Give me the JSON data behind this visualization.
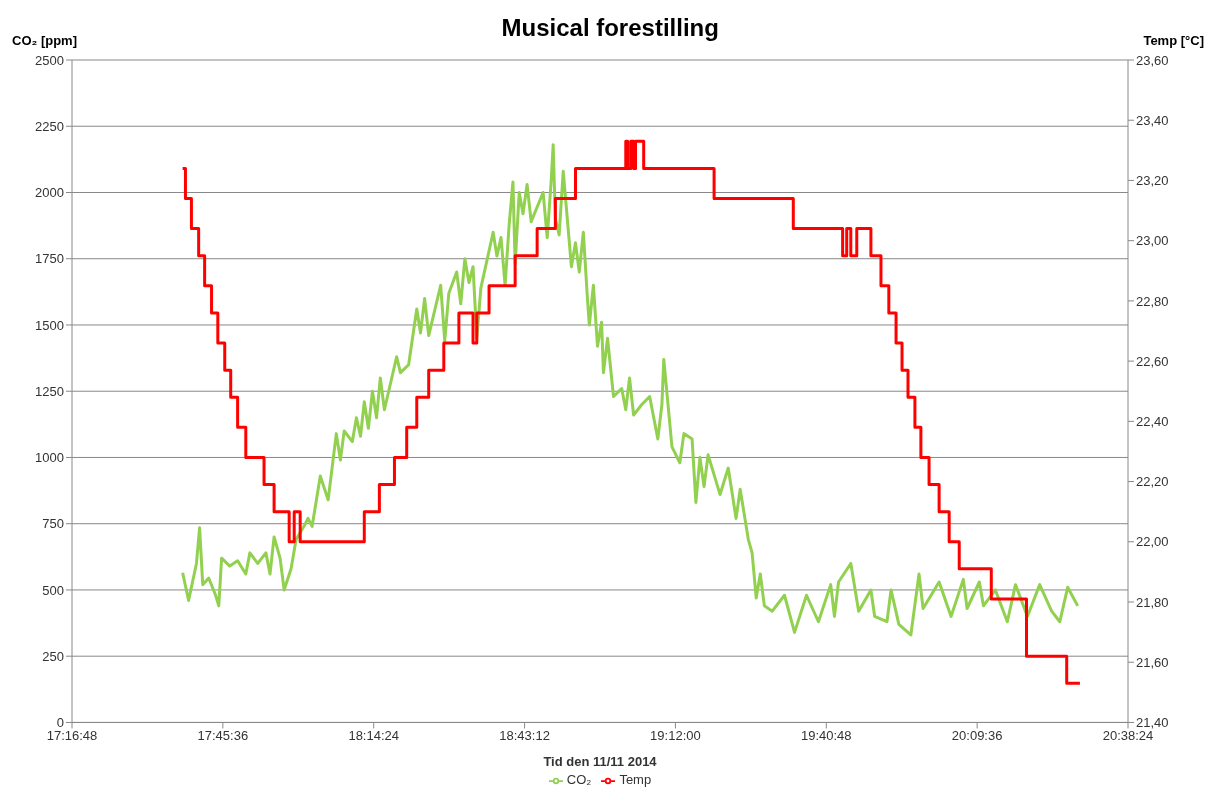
{
  "chart_data": {
    "type": "line",
    "title": "Musical forestilling",
    "xlabel": "Tid den 11/11 2014",
    "ylabel": "CO₂ [ppm]",
    "y2label": "Temp [°C]",
    "xlim": [
      17.28,
      20.64
    ],
    "xticks": [
      {
        "value": 17.28,
        "label": "17:16:48"
      },
      {
        "value": 17.76,
        "label": "17:45:36"
      },
      {
        "value": 18.24,
        "label": "18:14:24"
      },
      {
        "value": 18.72,
        "label": "18:43:12"
      },
      {
        "value": 19.2,
        "label": "19:12:00"
      },
      {
        "value": 19.68,
        "label": "19:40:48"
      },
      {
        "value": 20.16,
        "label": "20:09:36"
      },
      {
        "value": 20.64,
        "label": "20:38:24"
      }
    ],
    "ylim": [
      0,
      2500
    ],
    "yticks": [
      0,
      250,
      500,
      750,
      1000,
      1250,
      1500,
      1750,
      2000,
      2250,
      2500
    ],
    "y2lim": [
      21.4,
      23.6
    ],
    "y2ticks": [
      {
        "value": 21.4,
        "label": "21,40"
      },
      {
        "value": 21.6,
        "label": "21,60"
      },
      {
        "value": 21.8,
        "label": "21,80"
      },
      {
        "value": 22.0,
        "label": "22,00"
      },
      {
        "value": 22.2,
        "label": "22,20"
      },
      {
        "value": 22.4,
        "label": "22,40"
      },
      {
        "value": 22.6,
        "label": "22,60"
      },
      {
        "value": 22.8,
        "label": "22,80"
      },
      {
        "value": 23.0,
        "label": "23,00"
      },
      {
        "value": 23.2,
        "label": "23,20"
      },
      {
        "value": 23.4,
        "label": "23,40"
      },
      {
        "value": 23.6,
        "label": "23,60"
      }
    ],
    "grid": "y",
    "legend": "bottom",
    "marker": "none",
    "line_style": "solid",
    "series": [
      {
        "name": "CO₂",
        "type": "line",
        "color": "#92d050",
        "x": [
          17.632,
          17.651,
          17.676,
          17.686,
          17.696,
          17.715,
          17.737,
          17.747,
          17.756,
          17.782,
          17.807,
          17.833,
          17.846,
          17.871,
          17.897,
          17.91,
          17.923,
          17.942,
          17.955,
          17.977,
          17.993,
          18.018,
          18.031,
          18.044,
          18.07,
          18.095,
          18.121,
          18.134,
          18.146,
          18.172,
          18.185,
          18.198,
          18.21,
          18.223,
          18.236,
          18.249,
          18.261,
          18.274,
          18.313,
          18.325,
          18.351,
          18.377,
          18.389,
          18.402,
          18.415,
          18.453,
          18.466,
          18.479,
          18.504,
          18.517,
          18.53,
          18.543,
          18.556,
          18.568,
          18.581,
          18.62,
          18.632,
          18.645,
          18.658,
          18.671,
          18.683,
          18.69,
          18.703,
          18.715,
          18.728,
          18.741,
          18.779,
          18.792,
          18.805,
          18.811,
          18.818,
          18.83,
          18.843,
          18.856,
          18.869,
          18.882,
          18.894,
          18.907,
          18.92,
          18.926,
          18.939,
          18.952,
          18.965,
          18.971,
          18.984,
          19.003,
          19.029,
          19.042,
          19.054,
          19.067,
          19.093,
          19.118,
          19.144,
          19.157,
          19.163,
          19.189,
          19.214,
          19.227,
          19.253,
          19.265,
          19.278,
          19.291,
          19.304,
          19.342,
          19.368,
          19.393,
          19.406,
          19.432,
          19.444,
          19.457,
          19.47,
          19.483,
          19.508,
          19.547,
          19.579,
          19.617,
          19.655,
          19.694,
          19.706,
          19.719,
          19.758,
          19.783,
          19.822,
          19.834,
          19.873,
          19.886,
          19.911,
          19.949,
          19.975,
          19.988,
          20.039,
          20.077,
          20.116,
          20.128,
          20.167,
          20.18,
          20.218,
          20.256,
          20.282,
          20.32,
          20.359,
          20.397,
          20.423,
          20.448,
          20.48
        ],
        "values": [
          565,
          460,
          600,
          735,
          520,
          545,
          480,
          440,
          620,
          590,
          610,
          560,
          640,
          600,
          640,
          560,
          700,
          620,
          500,
          580,
          690,
          740,
          770,
          740,
          930,
          840,
          1090,
          990,
          1100,
          1060,
          1150,
          1080,
          1210,
          1110,
          1250,
          1150,
          1300,
          1180,
          1380,
          1320,
          1350,
          1560,
          1470,
          1600,
          1460,
          1650,
          1440,
          1620,
          1700,
          1580,
          1750,
          1660,
          1720,
          1450,
          1640,
          1850,
          1760,
          1830,
          1650,
          1880,
          2040,
          1730,
          2000,
          1920,
          2030,
          1890,
          2000,
          1830,
          2050,
          2180,
          1900,
          1840,
          2080,
          1900,
          1720,
          1810,
          1700,
          1850,
          1600,
          1500,
          1650,
          1420,
          1510,
          1320,
          1450,
          1230,
          1260,
          1180,
          1300,
          1160,
          1200,
          1230,
          1070,
          1200,
          1370,
          1040,
          980,
          1090,
          1070,
          830,
          1000,
          890,
          1010,
          860,
          960,
          770,
          880,
          690,
          640,
          470,
          560,
          440,
          420,
          480,
          340,
          480,
          380,
          520,
          400,
          530,
          600,
          420,
          500,
          400,
          380,
          500,
          370,
          330,
          560,
          430,
          530,
          400,
          540,
          430,
          530,
          440,
          500,
          380,
          520,
          400,
          520,
          420,
          380,
          510,
          440
        ]
      },
      {
        "name": "Temp",
        "type": "step",
        "axis": "y2",
        "color": "#ff0000",
        "x": [
          17.632,
          17.641,
          17.66,
          17.683,
          17.702,
          17.724,
          17.744,
          17.766,
          17.785,
          17.807,
          17.833,
          17.891,
          17.923,
          17.971,
          17.987,
          18.006,
          18.21,
          18.258,
          18.306,
          18.345,
          18.377,
          18.415,
          18.463,
          18.511,
          18.556,
          18.568,
          18.607,
          18.69,
          18.76,
          18.818,
          18.882,
          19.042,
          19.048,
          19.058,
          19.067,
          19.073,
          19.099,
          19.323,
          19.575,
          19.732,
          19.745,
          19.758,
          19.777,
          19.822,
          19.854,
          19.879,
          19.902,
          19.921,
          19.94,
          19.962,
          19.981,
          20.007,
          20.039,
          20.071,
          20.103,
          20.205,
          20.317,
          20.445,
          20.487
        ],
        "values": [
          23.24,
          23.14,
          23.04,
          22.95,
          22.85,
          22.76,
          22.66,
          22.57,
          22.48,
          22.38,
          22.28,
          22.19,
          22.1,
          22.0,
          22.1,
          22.0,
          22.1,
          22.19,
          22.28,
          22.38,
          22.48,
          22.57,
          22.66,
          22.76,
          22.66,
          22.76,
          22.85,
          22.95,
          23.04,
          23.14,
          23.24,
          23.33,
          23.24,
          23.33,
          23.24,
          23.33,
          23.24,
          23.14,
          23.04,
          22.95,
          23.04,
          22.95,
          23.04,
          22.95,
          22.85,
          22.76,
          22.66,
          22.57,
          22.48,
          22.38,
          22.28,
          22.19,
          22.1,
          22.0,
          21.91,
          21.81,
          21.62,
          21.53,
          21.53
        ]
      }
    ]
  }
}
